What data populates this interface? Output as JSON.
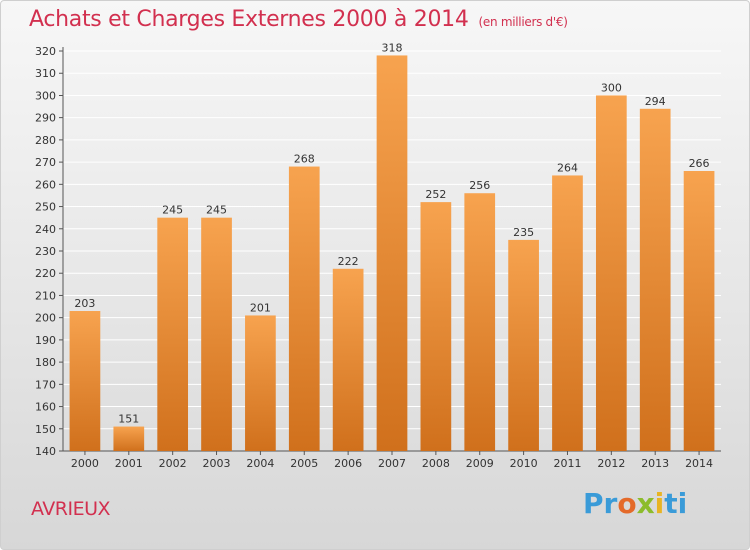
{
  "chart_data": {
    "type": "bar",
    "title": "Achats et Charges Externes 2000 à 2014",
    "subtitle": "(en milliers d'€)",
    "xlabel": "",
    "ylabel": "",
    "categories": [
      "2000",
      "2001",
      "2002",
      "2003",
      "2004",
      "2005",
      "2006",
      "2007",
      "2008",
      "2009",
      "2010",
      "2011",
      "2012",
      "2013",
      "2014"
    ],
    "values": [
      203,
      151,
      245,
      245,
      201,
      268,
      222,
      318,
      252,
      256,
      235,
      264,
      300,
      294,
      266
    ],
    "data_labels": [
      "203",
      "151",
      "245",
      "245",
      "201",
      "268",
      "222",
      "318",
      "252",
      "256",
      "235",
      "264",
      "300",
      "294",
      "266"
    ],
    "ylim": [
      140,
      320
    ],
    "yticks": [
      140,
      150,
      160,
      170,
      180,
      190,
      200,
      210,
      220,
      230,
      240,
      250,
      260,
      270,
      280,
      290,
      300,
      310,
      320
    ],
    "ytick_labels": [
      "140",
      "150",
      "160",
      "170",
      "180",
      "190",
      "200",
      "210",
      "220",
      "230",
      "240",
      "250",
      "260",
      "270",
      "280",
      "290",
      "300",
      "310",
      "320"
    ],
    "grid": true,
    "legend": "none",
    "bar_color_light": "#f7a34f",
    "bar_color_dark": "#d0701c",
    "grid_color": "#ffffff"
  },
  "footer": {
    "commune": "AVRIEUX"
  },
  "logo": {
    "part1": "Pr",
    "part2": "o",
    "part3": "x",
    "part4": "i",
    "part5": "ti"
  },
  "colors": {
    "title": "#d2304f",
    "text": "#333333"
  }
}
